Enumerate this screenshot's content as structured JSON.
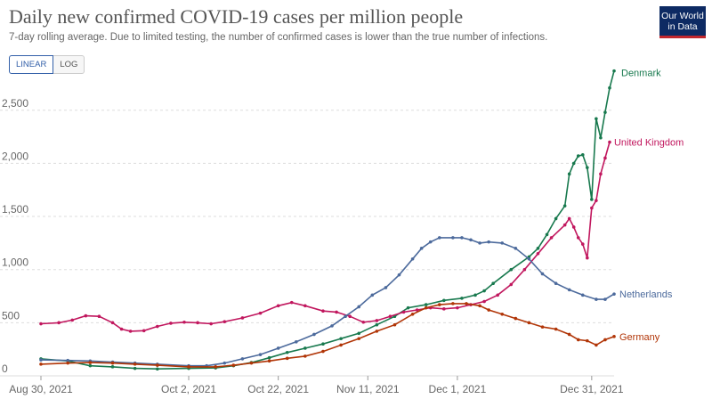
{
  "title": "Daily new confirmed COVID-19 cases per million people",
  "subtitle": "7-day rolling average. Due to limited testing, the number of confirmed cases is lower than the true number of infections.",
  "logo": {
    "line1": "Our World",
    "line2": "in Data"
  },
  "scale_toggle": {
    "linear_label": "LINEAR",
    "log_label": "LOG",
    "selected": "LINEAR"
  },
  "chart_data": {
    "type": "line",
    "title": "Daily new confirmed COVID-19 cases per million people",
    "xlabel": "",
    "ylabel": "",
    "x_range": [
      "2021-08-30",
      "2022-01-01"
    ],
    "ylim": [
      0,
      2850
    ],
    "y_ticks": [
      0,
      500,
      1000,
      1500,
      2000,
      2500
    ],
    "y_tick_labels": [
      "0",
      "500",
      "1,000",
      "1,500",
      "2,000",
      "2,500"
    ],
    "x_ticks": [
      "2021-08-30",
      "2021-10-02",
      "2021-10-22",
      "2021-11-11",
      "2021-12-01",
      "2021-12-31"
    ],
    "x_tick_labels": [
      "Aug 30, 2021",
      "Oct 2, 2021",
      "Oct 22, 2021",
      "Nov 11, 2021",
      "Dec 1, 2021",
      "Dec 31, 2021"
    ],
    "grid": "horizontal",
    "legend": "end-of-line labels",
    "series": [
      {
        "name": "Denmark",
        "color": "#18794e",
        "points": [
          [
            "2021-08-30",
            160
          ],
          [
            "2021-09-05",
            140
          ],
          [
            "2021-09-10",
            95
          ],
          [
            "2021-09-15",
            85
          ],
          [
            "2021-09-20",
            70
          ],
          [
            "2021-09-25",
            65
          ],
          [
            "2021-10-02",
            70
          ],
          [
            "2021-10-08",
            75
          ],
          [
            "2021-10-12",
            95
          ],
          [
            "2021-10-16",
            125
          ],
          [
            "2021-10-20",
            170
          ],
          [
            "2021-10-24",
            220
          ],
          [
            "2021-10-28",
            260
          ],
          [
            "2021-11-01",
            300
          ],
          [
            "2021-11-05",
            350
          ],
          [
            "2021-11-09",
            400
          ],
          [
            "2021-11-13",
            480
          ],
          [
            "2021-11-17",
            560
          ],
          [
            "2021-11-20",
            640
          ],
          [
            "2021-11-24",
            670
          ],
          [
            "2021-11-28",
            710
          ],
          [
            "2021-12-02",
            730
          ],
          [
            "2021-12-05",
            760
          ],
          [
            "2021-12-07",
            800
          ],
          [
            "2021-12-09",
            870
          ],
          [
            "2021-12-13",
            1000
          ],
          [
            "2021-12-17",
            1120
          ],
          [
            "2021-12-19",
            1200
          ],
          [
            "2021-12-21",
            1330
          ],
          [
            "2021-12-23",
            1480
          ],
          [
            "2021-12-25",
            1600
          ],
          [
            "2021-12-26",
            1900
          ],
          [
            "2021-12-27",
            2000
          ],
          [
            "2021-12-28",
            2070
          ],
          [
            "2021-12-29",
            2080
          ],
          [
            "2021-12-30",
            1960
          ],
          [
            "2021-12-31",
            1660
          ],
          [
            "2022-01-01",
            2420
          ],
          [
            "2022-01-02",
            2240
          ],
          [
            "2022-01-03",
            2480
          ],
          [
            "2022-01-04",
            2710
          ],
          [
            "2022-01-05",
            2870
          ]
        ]
      },
      {
        "name": "United Kingdom",
        "color": "#c1175e",
        "points": [
          [
            "2021-08-30",
            490
          ],
          [
            "2021-09-03",
            500
          ],
          [
            "2021-09-06",
            525
          ],
          [
            "2021-09-09",
            565
          ],
          [
            "2021-09-12",
            560
          ],
          [
            "2021-09-15",
            500
          ],
          [
            "2021-09-17",
            440
          ],
          [
            "2021-09-19",
            420
          ],
          [
            "2021-09-22",
            425
          ],
          [
            "2021-09-25",
            465
          ],
          [
            "2021-09-28",
            495
          ],
          [
            "2021-10-01",
            505
          ],
          [
            "2021-10-04",
            500
          ],
          [
            "2021-10-07",
            490
          ],
          [
            "2021-10-10",
            510
          ],
          [
            "2021-10-14",
            545
          ],
          [
            "2021-10-18",
            590
          ],
          [
            "2021-10-22",
            660
          ],
          [
            "2021-10-25",
            690
          ],
          [
            "2021-10-28",
            660
          ],
          [
            "2021-11-01",
            610
          ],
          [
            "2021-11-04",
            600
          ],
          [
            "2021-11-07",
            560
          ],
          [
            "2021-11-10",
            505
          ],
          [
            "2021-11-13",
            520
          ],
          [
            "2021-11-16",
            560
          ],
          [
            "2021-11-19",
            600
          ],
          [
            "2021-11-22",
            620
          ],
          [
            "2021-11-25",
            640
          ],
          [
            "2021-11-28",
            630
          ],
          [
            "2021-12-01",
            640
          ],
          [
            "2021-12-04",
            670
          ],
          [
            "2021-12-07",
            700
          ],
          [
            "2021-12-10",
            760
          ],
          [
            "2021-12-13",
            860
          ],
          [
            "2021-12-16",
            1000
          ],
          [
            "2021-12-19",
            1150
          ],
          [
            "2021-12-22",
            1300
          ],
          [
            "2021-12-25",
            1420
          ],
          [
            "2021-12-26",
            1480
          ],
          [
            "2021-12-27",
            1400
          ],
          [
            "2021-12-28",
            1300
          ],
          [
            "2021-12-29",
            1240
          ],
          [
            "2021-12-30",
            1110
          ],
          [
            "2021-12-31",
            1580
          ],
          [
            "2022-01-01",
            1650
          ],
          [
            "2022-01-02",
            1900
          ],
          [
            "2022-01-03",
            2050
          ],
          [
            "2022-01-04",
            2200
          ]
        ]
      },
      {
        "name": "Netherlands",
        "color": "#4c6a9c",
        "points": [
          [
            "2021-08-30",
            150
          ],
          [
            "2021-09-05",
            145
          ],
          [
            "2021-09-10",
            140
          ],
          [
            "2021-09-15",
            130
          ],
          [
            "2021-09-20",
            120
          ],
          [
            "2021-09-25",
            110
          ],
          [
            "2021-10-02",
            95
          ],
          [
            "2021-10-06",
            95
          ],
          [
            "2021-10-10",
            120
          ],
          [
            "2021-10-14",
            160
          ],
          [
            "2021-10-18",
            200
          ],
          [
            "2021-10-22",
            260
          ],
          [
            "2021-10-26",
            320
          ],
          [
            "2021-10-30",
            390
          ],
          [
            "2021-11-03",
            470
          ],
          [
            "2021-11-06",
            560
          ],
          [
            "2021-11-09",
            650
          ],
          [
            "2021-11-12",
            760
          ],
          [
            "2021-11-15",
            830
          ],
          [
            "2021-11-18",
            950
          ],
          [
            "2021-11-21",
            1100
          ],
          [
            "2021-11-23",
            1200
          ],
          [
            "2021-11-25",
            1260
          ],
          [
            "2021-11-27",
            1300
          ],
          [
            "2021-11-30",
            1300
          ],
          [
            "2021-12-02",
            1300
          ],
          [
            "2021-12-04",
            1280
          ],
          [
            "2021-12-06",
            1250
          ],
          [
            "2021-12-08",
            1260
          ],
          [
            "2021-12-11",
            1250
          ],
          [
            "2021-12-14",
            1200
          ],
          [
            "2021-12-17",
            1100
          ],
          [
            "2021-12-20",
            960
          ],
          [
            "2021-12-23",
            870
          ],
          [
            "2021-12-26",
            810
          ],
          [
            "2021-12-29",
            760
          ],
          [
            "2022-01-01",
            720
          ],
          [
            "2022-01-03",
            720
          ],
          [
            "2022-01-05",
            770
          ]
        ]
      },
      {
        "name": "Germany",
        "color": "#b13507",
        "points": [
          [
            "2021-08-30",
            110
          ],
          [
            "2021-09-05",
            120
          ],
          [
            "2021-09-10",
            125
          ],
          [
            "2021-09-15",
            120
          ],
          [
            "2021-09-20",
            110
          ],
          [
            "2021-09-25",
            100
          ],
          [
            "2021-10-02",
            85
          ],
          [
            "2021-10-08",
            85
          ],
          [
            "2021-10-12",
            100
          ],
          [
            "2021-10-16",
            120
          ],
          [
            "2021-10-20",
            140
          ],
          [
            "2021-10-24",
            165
          ],
          [
            "2021-10-28",
            185
          ],
          [
            "2021-11-01",
            230
          ],
          [
            "2021-11-05",
            290
          ],
          [
            "2021-11-09",
            350
          ],
          [
            "2021-11-13",
            420
          ],
          [
            "2021-11-17",
            480
          ],
          [
            "2021-11-21",
            580
          ],
          [
            "2021-11-24",
            640
          ],
          [
            "2021-11-27",
            670
          ],
          [
            "2021-11-30",
            680
          ],
          [
            "2021-12-03",
            680
          ],
          [
            "2021-12-06",
            660
          ],
          [
            "2021-12-08",
            620
          ],
          [
            "2021-12-11",
            580
          ],
          [
            "2021-12-14",
            540
          ],
          [
            "2021-12-17",
            500
          ],
          [
            "2021-12-20",
            460
          ],
          [
            "2021-12-23",
            440
          ],
          [
            "2021-12-26",
            390
          ],
          [
            "2021-12-28",
            340
          ],
          [
            "2021-12-30",
            330
          ],
          [
            "2022-01-01",
            290
          ],
          [
            "2022-01-03",
            340
          ],
          [
            "2022-01-05",
            370
          ]
        ]
      }
    ]
  }
}
